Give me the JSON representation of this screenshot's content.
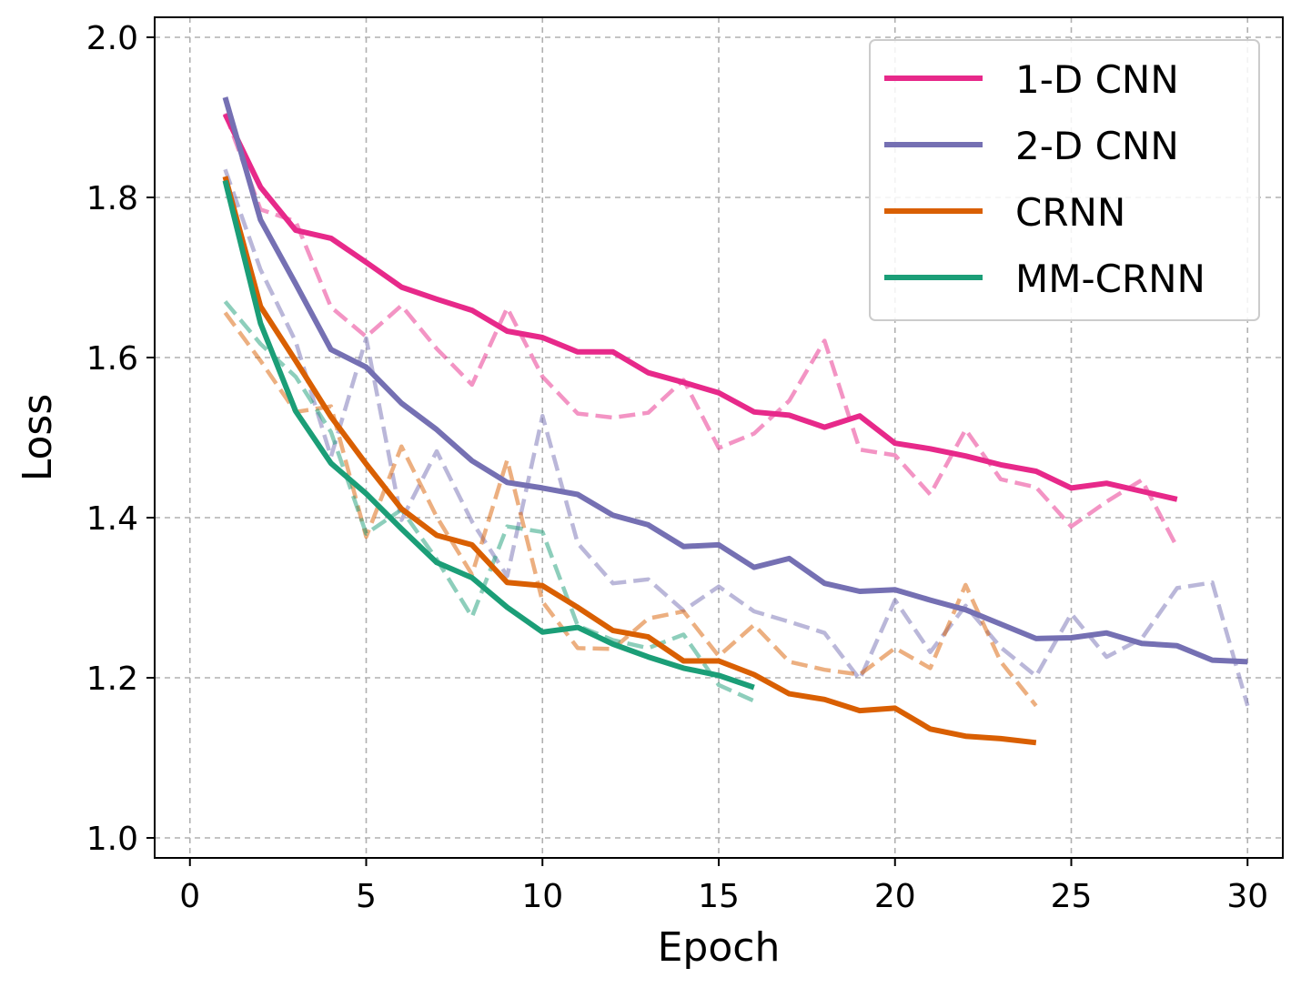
{
  "chart_data": {
    "type": "line",
    "title": "",
    "xlabel": "Epoch",
    "ylabel": "Loss",
    "xlim": [
      -1,
      31
    ],
    "ylim": [
      0.975,
      2.025
    ],
    "xticks": [
      0,
      5,
      10,
      15,
      20,
      25,
      30
    ],
    "yticks": [
      1.0,
      1.2,
      1.4,
      1.6,
      1.8,
      2.0
    ],
    "x_tick_labels": [
      "0",
      "5",
      "10",
      "15",
      "20",
      "25",
      "30"
    ],
    "y_tick_labels": [
      "1.0",
      "1.2",
      "1.4",
      "1.6",
      "1.8",
      "2.0"
    ],
    "grid": true,
    "legend_position": "top-right",
    "series": [
      {
        "name": "1-D CNN",
        "color": "#e7298a",
        "train": [
          1.904,
          1.813,
          1.759,
          1.749,
          1.719,
          1.688,
          1.673,
          1.659,
          1.633,
          1.625,
          1.607,
          1.607,
          1.581,
          1.569,
          1.556,
          1.532,
          1.528,
          1.513,
          1.527,
          1.493,
          1.486,
          1.477,
          1.466,
          1.458,
          1.437,
          1.443,
          1.433,
          1.423
        ],
        "val": [
          1.905,
          1.785,
          1.77,
          1.663,
          1.626,
          1.665,
          1.611,
          1.566,
          1.662,
          1.576,
          1.53,
          1.525,
          1.531,
          1.572,
          1.487,
          1.505,
          1.546,
          1.621,
          1.485,
          1.478,
          1.429,
          1.51,
          1.448,
          1.438,
          1.389,
          1.42,
          1.447,
          1.363
        ]
      },
      {
        "name": "2-D CNN",
        "color": "#7570b3",
        "train": [
          1.925,
          1.772,
          1.692,
          1.61,
          1.588,
          1.543,
          1.51,
          1.471,
          1.444,
          1.437,
          1.429,
          1.403,
          1.391,
          1.364,
          1.366,
          1.338,
          1.349,
          1.318,
          1.308,
          1.31,
          1.297,
          1.285,
          1.267,
          1.249,
          1.25,
          1.256,
          1.243,
          1.24,
          1.222,
          1.22
        ],
        "val": [
          1.835,
          1.71,
          1.62,
          1.476,
          1.624,
          1.397,
          1.483,
          1.395,
          1.327,
          1.527,
          1.368,
          1.318,
          1.323,
          1.284,
          1.314,
          1.283,
          1.27,
          1.256,
          1.198,
          1.297,
          1.232,
          1.29,
          1.238,
          1.202,
          1.28,
          1.226,
          1.249,
          1.312,
          1.319,
          1.165
        ]
      },
      {
        "name": "CRNN",
        "color": "#d95f02",
        "train": [
          1.826,
          1.664,
          1.596,
          1.526,
          1.467,
          1.411,
          1.378,
          1.366,
          1.319,
          1.315,
          1.288,
          1.259,
          1.251,
          1.221,
          1.221,
          1.204,
          1.18,
          1.173,
          1.159,
          1.162,
          1.136,
          1.127,
          1.124,
          1.119
        ],
        "val": [
          1.656,
          1.596,
          1.532,
          1.539,
          1.376,
          1.489,
          1.401,
          1.329,
          1.472,
          1.295,
          1.237,
          1.236,
          1.274,
          1.283,
          1.227,
          1.266,
          1.22,
          1.21,
          1.204,
          1.237,
          1.212,
          1.316,
          1.22,
          1.165
        ]
      },
      {
        "name": "MM-CRNN",
        "color": "#1b9e77",
        "train": [
          1.821,
          1.643,
          1.533,
          1.468,
          1.43,
          1.386,
          1.344,
          1.325,
          1.288,
          1.257,
          1.263,
          1.242,
          1.226,
          1.212,
          1.203,
          1.188
        ],
        "val": [
          1.67,
          1.617,
          1.576,
          1.507,
          1.38,
          1.41,
          1.348,
          1.276,
          1.389,
          1.382,
          1.265,
          1.247,
          1.237,
          1.254,
          1.191,
          1.171
        ]
      }
    ]
  }
}
